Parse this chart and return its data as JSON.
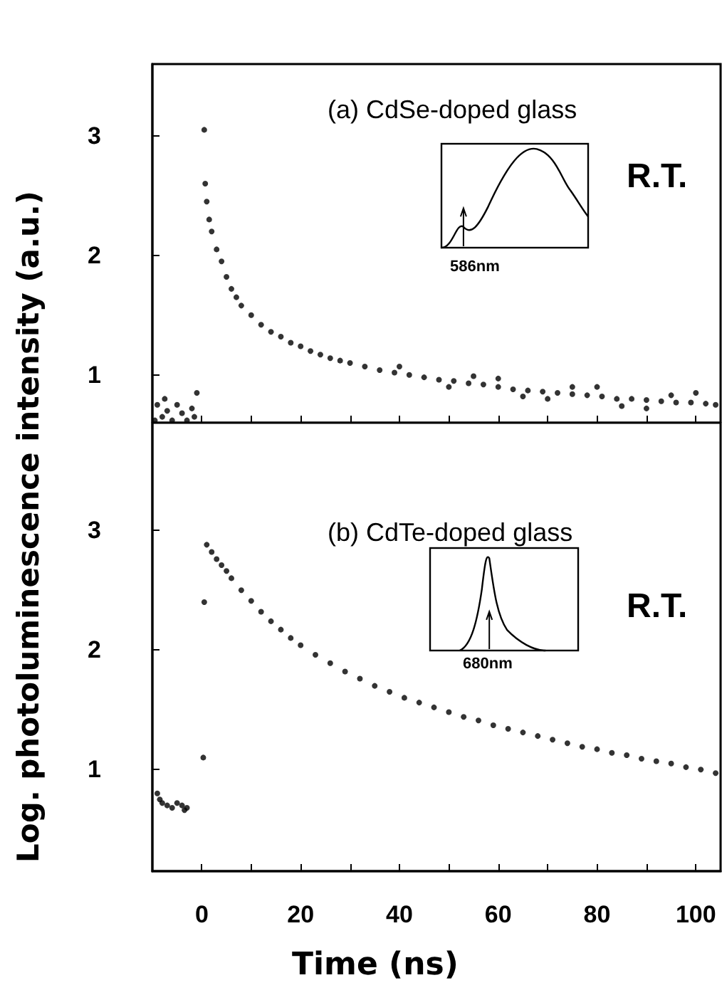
{
  "chart_data": [
    {
      "type": "scatter",
      "title": "(a) CdSe-doped glass",
      "ylabel": "Log. photoluminescence intensity (a.u.)",
      "annotations": [
        "R.T.",
        "586nm"
      ],
      "marker": "circle",
      "tick_labels": "y",
      "xlim": [
        -10,
        105
      ],
      "xticks": [
        {
          "value": 0,
          "label": null
        },
        {
          "value": 10,
          "label": null
        },
        {
          "value": 20,
          "label": null
        },
        {
          "value": 30,
          "label": null
        },
        {
          "value": 40,
          "label": null
        },
        {
          "value": 50,
          "label": null
        },
        {
          "value": 60,
          "label": null
        },
        {
          "value": 70,
          "label": null
        },
        {
          "value": 80,
          "label": null
        },
        {
          "value": 90,
          "label": null
        },
        {
          "value": 100,
          "label": null
        }
      ],
      "ylim": [
        0.6,
        3.6
      ],
      "yticks": [
        1,
        2,
        3
      ],
      "series": [
        {
          "color": "#000000",
          "x": [
            -9.5,
            -9,
            -8,
            -7.5,
            -7,
            -6,
            -5,
            -4,
            -3,
            -2,
            -1.5,
            -1,
            0.5,
            0.7,
            1,
            1.5,
            2,
            3,
            4,
            5,
            6,
            7,
            8,
            10,
            12,
            14,
            16,
            18,
            20,
            22,
            24,
            26,
            28,
            30,
            33,
            36,
            39,
            42,
            45,
            48,
            51,
            54,
            57,
            60,
            63,
            66,
            69,
            72,
            75,
            78,
            81,
            84,
            87,
            90,
            93,
            96,
            99,
            102,
            104,
            40,
            50,
            60,
            70,
            80,
            90,
            100,
            55,
            85,
            95,
            65,
            75
          ],
          "values": [
            0.62,
            0.75,
            0.65,
            0.8,
            0.7,
            0.62,
            0.75,
            0.68,
            0.62,
            0.72,
            0.65,
            0.85,
            3.05,
            2.6,
            2.45,
            2.3,
            2.2,
            2.05,
            1.95,
            1.82,
            1.72,
            1.65,
            1.58,
            1.5,
            1.42,
            1.36,
            1.32,
            1.27,
            1.24,
            1.2,
            1.17,
            1.14,
            1.12,
            1.1,
            1.07,
            1.04,
            1.02,
            1.0,
            0.98,
            0.96,
            0.95,
            0.93,
            0.92,
            0.9,
            0.88,
            0.87,
            0.86,
            0.85,
            0.84,
            0.83,
            0.82,
            0.8,
            0.8,
            0.79,
            0.78,
            0.77,
            0.77,
            0.76,
            0.75,
            1.07,
            0.9,
            0.97,
            0.8,
            0.9,
            0.72,
            0.85,
            0.99,
            0.74,
            0.83,
            0.82,
            0.9
          ]
        }
      ]
    },
    {
      "type": "scatter",
      "title": "(b) CdTe-doped glass",
      "xlabel": "Time (ns)",
      "annotations": [
        "R.T.",
        "680nm"
      ],
      "marker": "circle",
      "xlim": [
        -10,
        105
      ],
      "xticks": [
        0,
        {
          "value": 10,
          "label": null
        },
        20,
        {
          "value": 30,
          "label": null
        },
        40,
        {
          "value": 50,
          "label": null
        },
        60,
        {
          "value": 70,
          "label": null
        },
        80,
        {
          "value": 90,
          "label": null
        },
        100
      ],
      "ylim": [
        0.15,
        3.9
      ],
      "yticks": [
        1,
        2,
        3
      ],
      "series": [
        {
          "color": "#000000",
          "x": [
            -9,
            -8.5,
            -8,
            -7,
            -6,
            -5,
            -4,
            -3.5,
            -3,
            0.5,
            0.3,
            1,
            2,
            3,
            4,
            5,
            6,
            8,
            10,
            12,
            14,
            16,
            18,
            20,
            23,
            26,
            29,
            32,
            35,
            38,
            41,
            44,
            47,
            50,
            53,
            56,
            59,
            62,
            65,
            68,
            71,
            74,
            77,
            80,
            83,
            86,
            89,
            92,
            95,
            98,
            101,
            104
          ],
          "values": [
            0.8,
            0.75,
            0.72,
            0.7,
            0.68,
            0.72,
            0.7,
            0.66,
            0.68,
            2.4,
            1.1,
            2.88,
            2.82,
            2.76,
            2.71,
            2.66,
            2.6,
            2.5,
            2.41,
            2.32,
            2.24,
            2.17,
            2.1,
            2.04,
            1.96,
            1.89,
            1.82,
            1.76,
            1.7,
            1.65,
            1.6,
            1.56,
            1.52,
            1.48,
            1.44,
            1.41,
            1.37,
            1.34,
            1.31,
            1.28,
            1.25,
            1.22,
            1.19,
            1.17,
            1.14,
            1.12,
            1.09,
            1.07,
            1.05,
            1.02,
            1.0,
            0.97
          ]
        }
      ]
    }
  ]
}
